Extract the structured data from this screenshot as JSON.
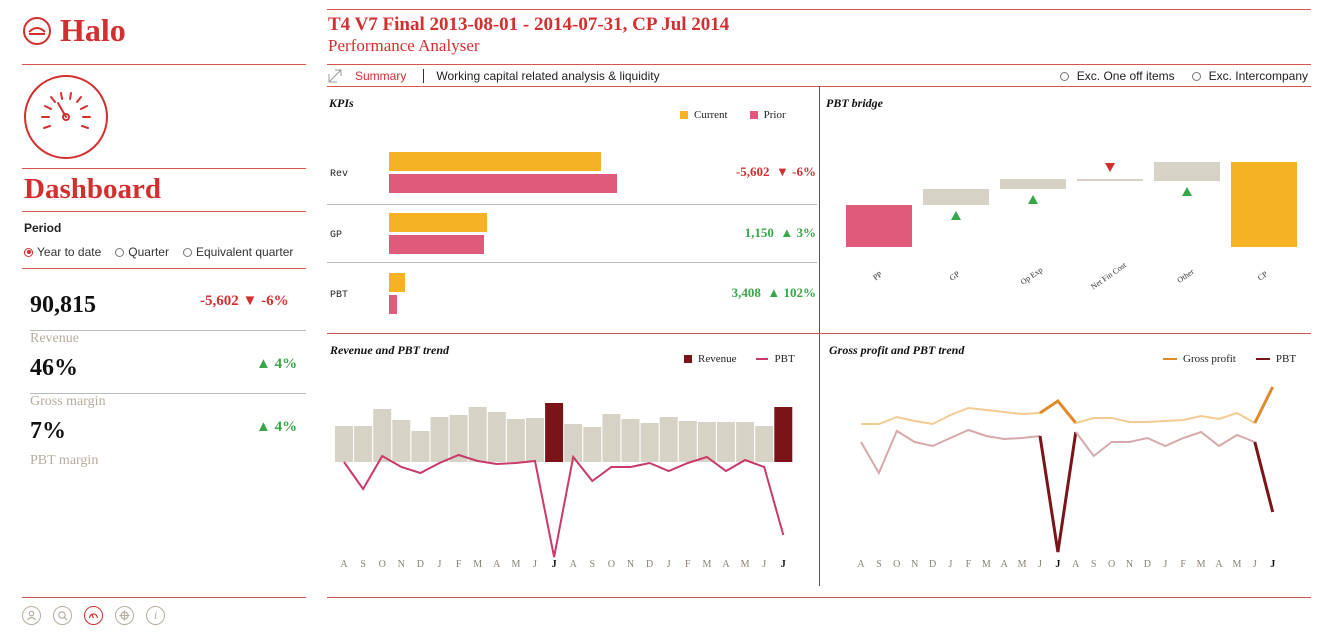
{
  "app": {
    "name": "Halo"
  },
  "header": {
    "title": "T4 V7 Final 2013-08-01 - 2014-07-31, CP Jul 2014",
    "subtitle": "Performance Analyser"
  },
  "toolbar": {
    "summary_label": "Summary",
    "section_label": "Working capital related analysis & liquidity",
    "toggles": [
      "Exc. One off items",
      "Exc. Intercompany"
    ]
  },
  "sidebar": {
    "title": "Dashboard",
    "period_label": "Period",
    "period_options": [
      "Year to date",
      "Quarter",
      "Equivalent quarter"
    ],
    "period_selected": "Year to date",
    "kpis": [
      {
        "value": "90,815",
        "delta": "-5,602 ▼ -6%",
        "label": "Revenue",
        "direction": "down"
      },
      {
        "value": "46%",
        "delta": "▲ 4%",
        "label": "Gross margin",
        "direction": "up"
      },
      {
        "value": "7%",
        "delta": "▲ 4%",
        "label": "PBT margin",
        "direction": "up"
      }
    ]
  },
  "footer": {
    "icons": [
      "user-icon",
      "search-icon",
      "gauge-icon",
      "target-icon",
      "info-icon"
    ],
    "active": "gauge-icon"
  },
  "colors": {
    "accent": "#d32f2f",
    "current": "#f5b323",
    "prior": "#e05a7c",
    "bar_grey": "#d6d2c6",
    "revenue_highlight": "#7a1418",
    "positive": "#3aa64a",
    "negative": "#d32f2f",
    "gross_profit": "#e08a2a"
  },
  "kpis_panel": {
    "title": "KPIs",
    "legend": [
      "Current",
      "Prior"
    ],
    "rows": [
      {
        "label": "Rev",
        "current": 0.8,
        "prior": 0.86,
        "value": "-5,602",
        "delta": "▼ -6%",
        "direction": "down"
      },
      {
        "label": "GP",
        "current": 0.37,
        "prior": 0.36,
        "value": "1,150",
        "delta": "▲ 3%",
        "direction": "up"
      },
      {
        "label": "PBT",
        "current": 0.06,
        "prior": 0.03,
        "value": "3,408",
        "delta": "▲ 102%",
        "direction": "up"
      }
    ]
  },
  "chart_data": [
    {
      "type": "bar",
      "title": "PBT bridge",
      "categories": [
        "PP",
        "GP",
        "Op Exp",
        "Net Fin Cost",
        "Other",
        "CP"
      ],
      "bars": [
        {
          "base": 0,
          "top": 42,
          "kind": "total"
        },
        {
          "base": 42,
          "top": 58,
          "kind": "step",
          "marker": "up"
        },
        {
          "base": 58,
          "top": 68,
          "kind": "step",
          "marker": "up"
        },
        {
          "base": 66,
          "top": 68,
          "kind": "step",
          "marker": "down"
        },
        {
          "base": 66,
          "top": 85,
          "kind": "step",
          "marker": "up"
        },
        {
          "base": 0,
          "top": 85,
          "kind": "total"
        }
      ]
    },
    {
      "type": "bar",
      "title": "Revenue and PBT trend",
      "legend": [
        "Revenue",
        "PBT"
      ],
      "categories": [
        "A",
        "S",
        "O",
        "N",
        "D",
        "J",
        "F",
        "M",
        "A",
        "M",
        "J",
        "J",
        "A",
        "S",
        "O",
        "N",
        "D",
        "J",
        "F",
        "M",
        "A",
        "M",
        "J",
        "J"
      ],
      "bold_categories": [
        11,
        23
      ],
      "highlight": [
        11,
        23
      ],
      "revenue": [
        36,
        36,
        53,
        42,
        31,
        45,
        47,
        55,
        50,
        43,
        44,
        59,
        38,
        35,
        48,
        43,
        39,
        45,
        41,
        40,
        40,
        40,
        36,
        55
      ],
      "pbt": [
        45,
        18,
        51,
        40,
        34,
        44,
        52,
        46,
        43,
        44,
        46,
        -50,
        50,
        26,
        40,
        40,
        44,
        36,
        44,
        50,
        36,
        47,
        40,
        -28
      ]
    },
    {
      "type": "line",
      "title": "Gross profit and PBT trend",
      "legend": [
        "Gross profit",
        "PBT"
      ],
      "categories": [
        "A",
        "S",
        "O",
        "N",
        "D",
        "J",
        "F",
        "M",
        "A",
        "M",
        "J",
        "J",
        "A",
        "S",
        "O",
        "N",
        "D",
        "J",
        "F",
        "M",
        "A",
        "M",
        "J",
        "J"
      ],
      "bold_categories": [
        11,
        23
      ],
      "gross_profit": [
        46,
        46,
        53,
        49,
        46,
        55,
        62,
        60,
        58,
        56,
        57,
        69,
        47,
        52,
        52,
        48,
        48,
        49,
        50,
        54,
        51,
        57,
        47,
        83
      ],
      "pbt": [
        40,
        9,
        51,
        40,
        36,
        44,
        52,
        46,
        43,
        44,
        46,
        -70,
        50,
        26,
        40,
        40,
        44,
        36,
        44,
        50,
        36,
        47,
        40,
        -30
      ]
    }
  ]
}
